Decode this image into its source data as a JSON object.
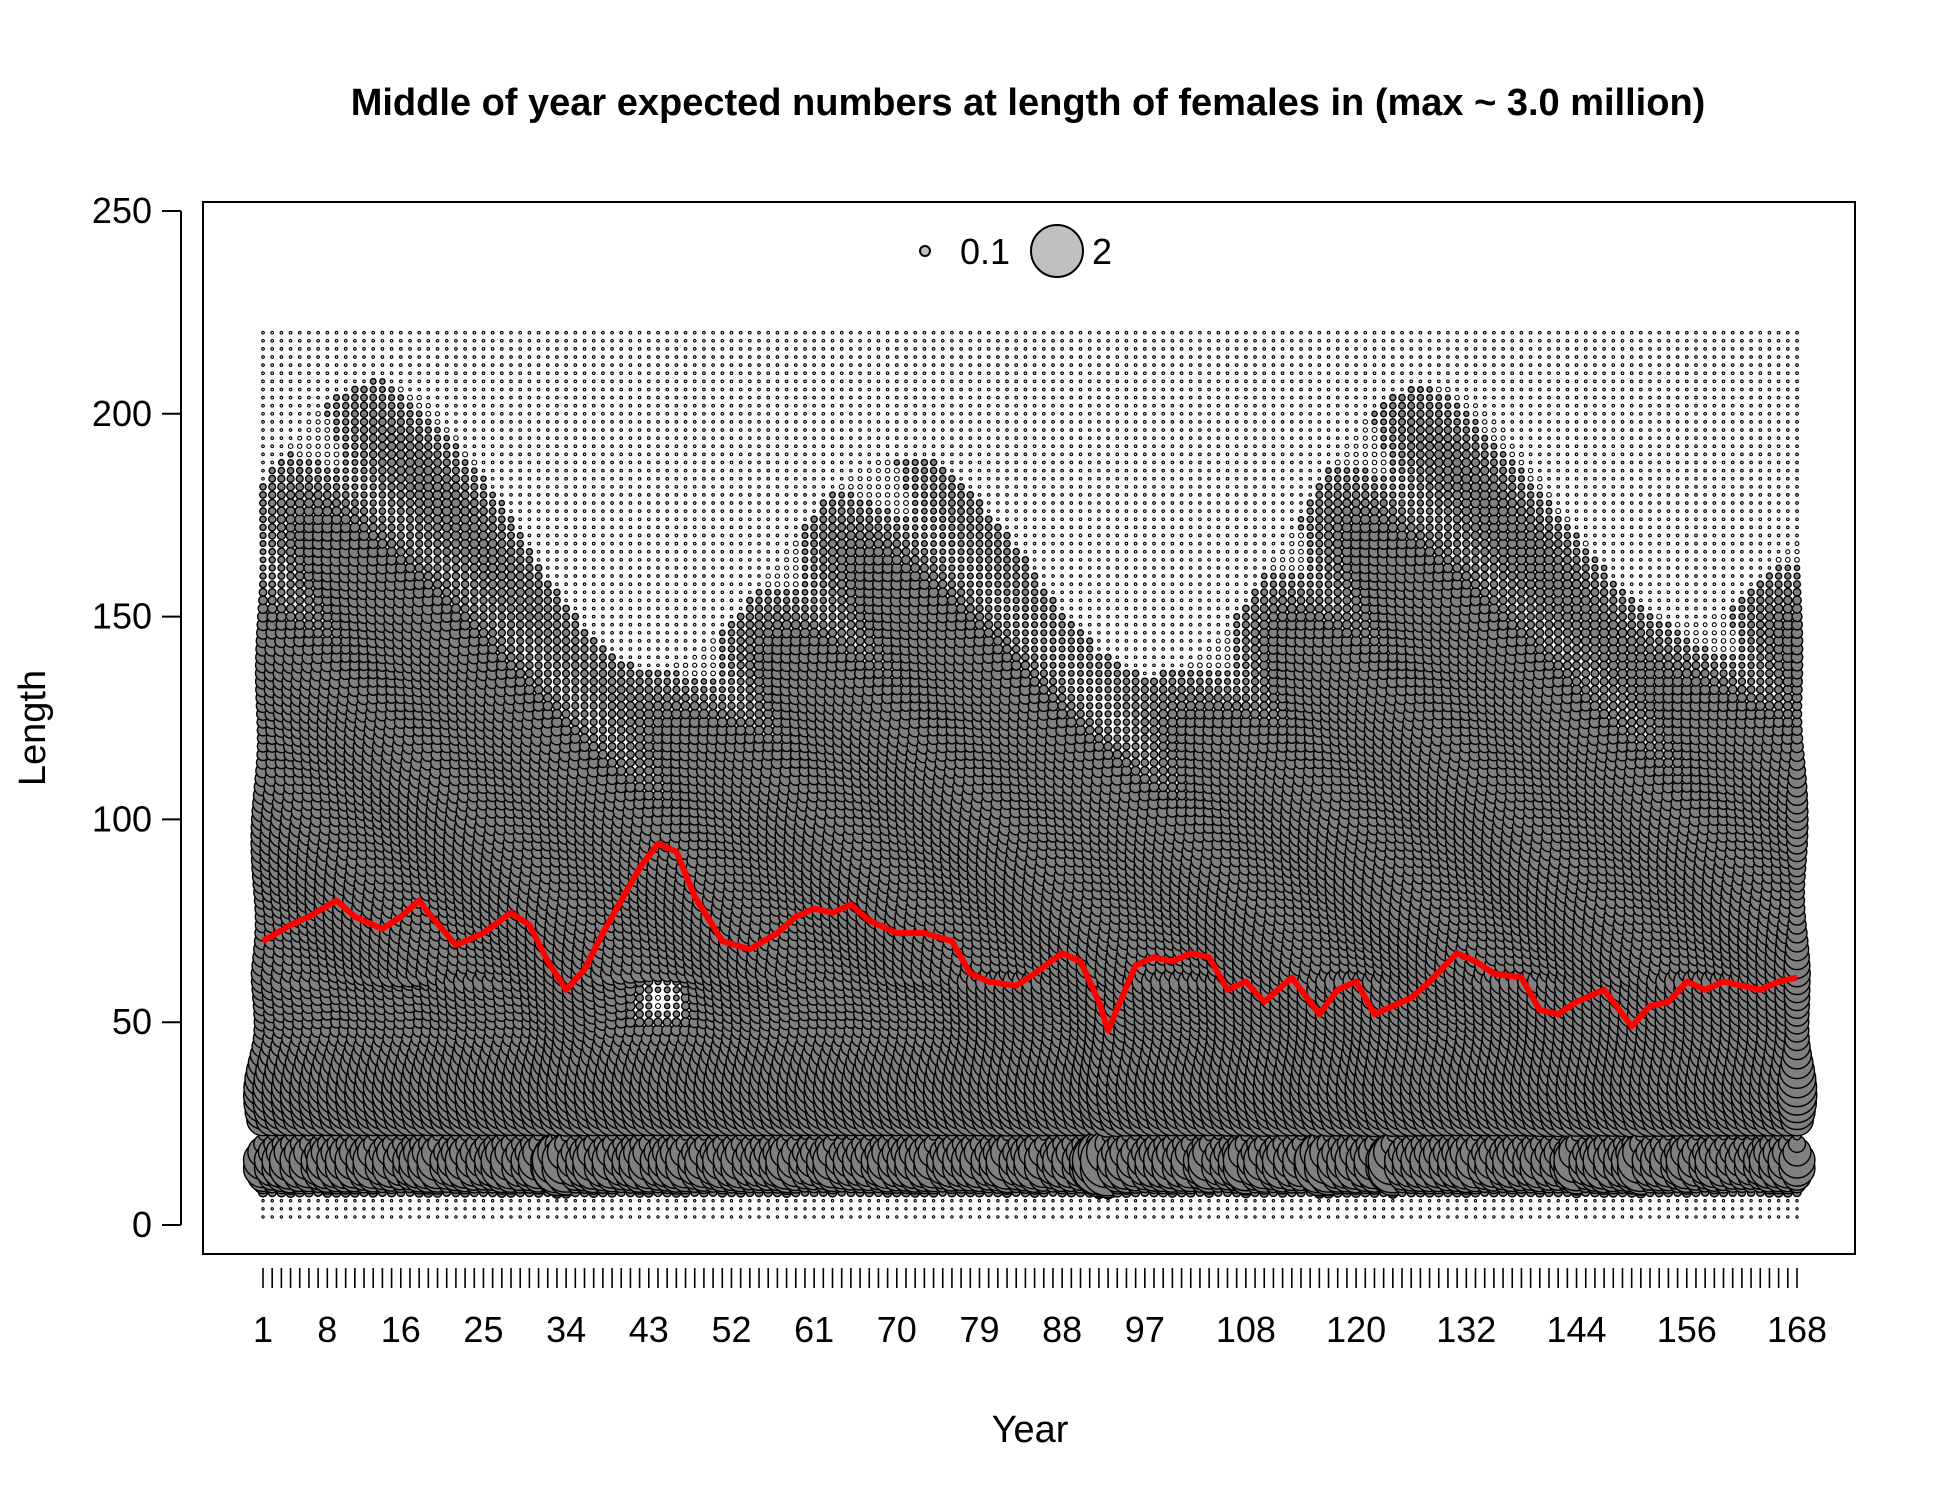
{
  "chart_data": {
    "type": "scatter",
    "subtype": "bubble",
    "title": "Middle of year expected numbers at length of females in (max ~ 3.0 million)",
    "xlabel": "Year",
    "ylabel": "Length",
    "xlim": [
      1,
      168
    ],
    "ylim": [
      0,
      250
    ],
    "x_tick_labels": [
      "1",
      "8",
      "16",
      "25",
      "34",
      "43",
      "52",
      "61",
      "70",
      "79",
      "88",
      "97",
      "108",
      "120",
      "132",
      "144",
      "156",
      "168"
    ],
    "x_tick_values": [
      1,
      8,
      16,
      25,
      34,
      43,
      52,
      61,
      70,
      79,
      88,
      97,
      108,
      120,
      132,
      144,
      156,
      168
    ],
    "y_ticks": [
      0,
      50,
      100,
      150,
      200,
      250
    ],
    "y_tick_labels": [
      "0",
      "50",
      "100",
      "150",
      "200",
      "250"
    ],
    "legend": {
      "placement": "top-center",
      "entries": [
        {
          "label": "0.1",
          "value": 0.1
        },
        {
          "label": "2",
          "value": 2
        }
      ]
    },
    "bubble_max_millions": 3.0,
    "length_bins": [
      2,
      220,
      2
    ],
    "bubble_fill": "#808080",
    "bubble_stroke": "#000000",
    "mean_length_color": "#ff0000",
    "series": [
      {
        "kind": "mean-length-line",
        "x": [
          1,
          4,
          6,
          9,
          11,
          14,
          16,
          18,
          19,
          22,
          25,
          28,
          30,
          32,
          34,
          36,
          38,
          40,
          42,
          44,
          46,
          48,
          51,
          54,
          57,
          59,
          61,
          63,
          65,
          67,
          70,
          73,
          76,
          78,
          80,
          83,
          85,
          88,
          90,
          92,
          93,
          96,
          98,
          100,
          102,
          104,
          106,
          108,
          110,
          113,
          116,
          118,
          120,
          122,
          124,
          126,
          128,
          131,
          133,
          135,
          138,
          140,
          142,
          144,
          147,
          150,
          152,
          154,
          156,
          158,
          160,
          162,
          164,
          166,
          168
        ],
        "y": [
          70,
          74,
          76,
          80,
          76,
          73,
          76,
          80,
          77,
          69,
          72,
          77,
          74,
          65,
          58,
          63,
          72,
          80,
          88,
          94,
          92,
          81,
          70,
          68,
          72,
          76,
          78,
          77,
          79,
          75,
          72,
          72,
          70,
          62,
          60,
          59,
          62,
          67,
          65,
          55,
          48,
          64,
          66,
          65,
          67,
          66,
          58,
          60,
          55,
          61,
          52,
          58,
          60,
          52,
          54,
          56,
          60,
          67,
          65,
          62,
          61,
          53,
          52,
          55,
          58,
          49,
          54,
          55,
          60,
          58,
          60,
          59,
          58,
          60,
          61
        ]
      }
    ]
  }
}
